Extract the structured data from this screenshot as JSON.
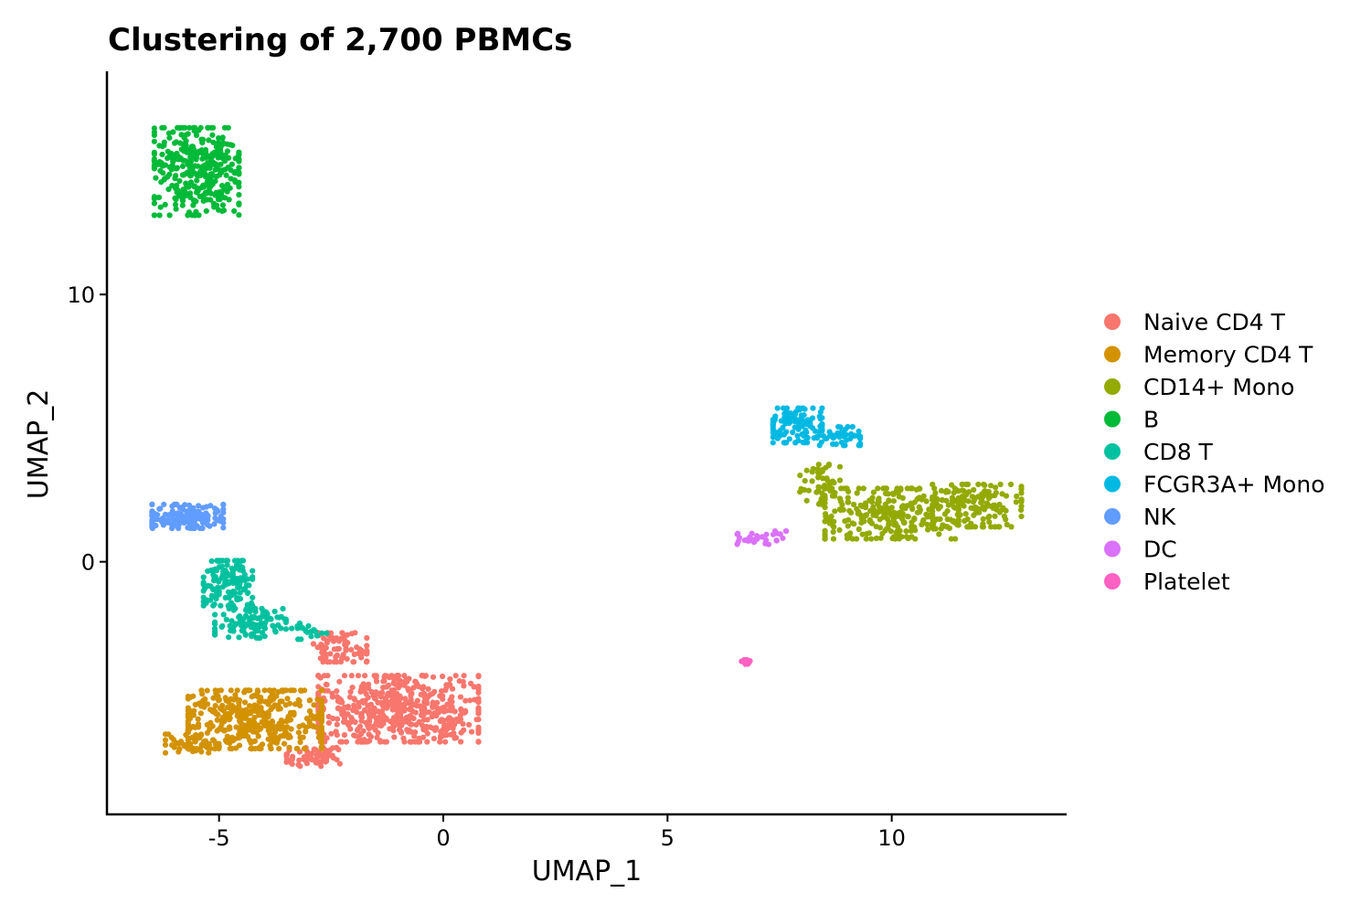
{
  "chart_data": {
    "type": "scatter",
    "title": "Clustering of 2,700 PBMCs",
    "xlabel": "UMAP_1",
    "ylabel": "UMAP_2",
    "xlim": [
      -7.5,
      13.9
    ],
    "ylim": [
      -9.45,
      18.35
    ],
    "x_ticks": [
      {
        "value": -5,
        "label": "-5"
      },
      {
        "value": 0,
        "label": "0"
      },
      {
        "value": 5,
        "label": "5"
      },
      {
        "value": 10,
        "label": "10"
      }
    ],
    "y_ticks": [
      {
        "value": 0,
        "label": "0"
      },
      {
        "value": 10,
        "label": "10"
      }
    ],
    "grid": false,
    "legend_position": "right",
    "series": [
      {
        "name": "Naive CD4 T",
        "color": "#F8766D",
        "count": 697,
        "clusters": [
          {
            "cx": -1.0,
            "cy": -5.5,
            "rx": 1.8,
            "ry": 1.25,
            "n": 560
          },
          {
            "cx": -2.3,
            "cy": -3.2,
            "rx": 0.6,
            "ry": 0.55,
            "n": 75
          },
          {
            "cx": -2.9,
            "cy": -7.3,
            "rx": 0.6,
            "ry": 0.35,
            "n": 62
          }
        ]
      },
      {
        "name": "Memory CD4 T",
        "color": "#D39200",
        "count": 483,
        "clusters": [
          {
            "cx": -4.2,
            "cy": -5.9,
            "rx": 1.5,
            "ry": 1.1,
            "n": 430
          },
          {
            "cx": -5.6,
            "cy": -6.8,
            "rx": 0.6,
            "ry": 0.35,
            "n": 53
          }
        ]
      },
      {
        "name": "CD14+ Mono",
        "color": "#93AA00",
        "count": 480,
        "clusters": [
          {
            "cx": 10.0,
            "cy": 1.8,
            "rx": 1.5,
            "ry": 0.95,
            "n": 280
          },
          {
            "cx": 11.9,
            "cy": 2.1,
            "rx": 1.0,
            "ry": 0.8,
            "n": 150
          },
          {
            "cx": 8.4,
            "cy": 2.9,
            "rx": 0.45,
            "ry": 0.75,
            "n": 50
          }
        ]
      },
      {
        "name": "B",
        "color": "#00BA38",
        "count": 344,
        "clusters": [
          {
            "cx": -5.5,
            "cy": 14.6,
            "rx": 0.95,
            "ry": 1.65,
            "n": 344
          }
        ]
      },
      {
        "name": "CD8 T",
        "color": "#00C19F",
        "count": 271,
        "clusters": [
          {
            "cx": -4.8,
            "cy": -0.8,
            "rx": 0.55,
            "ry": 0.85,
            "n": 140
          },
          {
            "cx": -4.3,
            "cy": -2.3,
            "rx": 0.8,
            "ry": 0.55,
            "n": 110
          },
          {
            "cx": -3.0,
            "cy": -2.6,
            "rx": 0.4,
            "ry": 0.3,
            "n": 21
          }
        ]
      },
      {
        "name": "FCGR3A+ Mono",
        "color": "#00B9E3",
        "count": 162,
        "clusters": [
          {
            "cx": 7.9,
            "cy": 5.1,
            "rx": 0.55,
            "ry": 0.65,
            "n": 120
          },
          {
            "cx": 8.8,
            "cy": 4.7,
            "rx": 0.5,
            "ry": 0.35,
            "n": 42
          }
        ]
      },
      {
        "name": "NK",
        "color": "#619CFF",
        "count": 155,
        "clusters": [
          {
            "cx": -5.7,
            "cy": 1.7,
            "rx": 0.8,
            "ry": 0.45,
            "n": 155
          }
        ]
      },
      {
        "name": "DC",
        "color": "#DB72FB",
        "count": 32,
        "clusters": [
          {
            "cx": 7.1,
            "cy": 0.9,
            "rx": 0.55,
            "ry": 0.25,
            "n": 32
          }
        ]
      },
      {
        "name": "Platelet",
        "color": "#FF61C3",
        "count": 14,
        "clusters": [
          {
            "cx": 6.75,
            "cy": -3.75,
            "rx": 0.1,
            "ry": 0.08,
            "n": 14
          }
        ]
      }
    ]
  }
}
